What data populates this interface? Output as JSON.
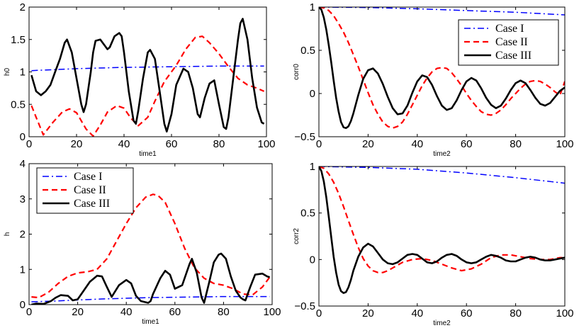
{
  "chart_data": [
    {
      "type": "line",
      "xlabel": "time1",
      "ylabel": "h0",
      "xlim": [
        0,
        100
      ],
      "ylim": [
        0,
        2
      ],
      "xticks": [
        0,
        20,
        40,
        60,
        80,
        100
      ],
      "yticks": [
        0,
        0.5,
        1,
        1.5,
        2
      ],
      "ytick_labels": [
        "0",
        "0.5",
        "1",
        "1.5",
        "2"
      ],
      "legend": null,
      "series": [
        {
          "name": "Case I",
          "color": "#0000ff",
          "style": "dashdot",
          "x": [
            1,
            20,
            40,
            60,
            80,
            99
          ],
          "y": [
            1.02,
            1.05,
            1.07,
            1.08,
            1.09,
            1.09
          ]
        },
        {
          "name": "Case II",
          "color": "#ff0000",
          "style": "dashed",
          "x": [
            1,
            3,
            6,
            10,
            14,
            17,
            20,
            24,
            27,
            30,
            33,
            37,
            40,
            43,
            46,
            50,
            53,
            57,
            62,
            66,
            70,
            73,
            76,
            80,
            84,
            88,
            92,
            96,
            99
          ],
          "y": [
            0.48,
            0.3,
            0.03,
            0.22,
            0.38,
            0.43,
            0.37,
            0.12,
            0.01,
            0.18,
            0.38,
            0.48,
            0.44,
            0.28,
            0.17,
            0.3,
            0.55,
            0.85,
            1.1,
            1.35,
            1.53,
            1.55,
            1.45,
            1.28,
            1.08,
            0.9,
            0.8,
            0.75,
            0.7
          ]
        },
        {
          "name": "Case III",
          "color": "#000000",
          "style": "solid",
          "x": [
            1,
            3,
            5,
            7,
            9,
            11,
            13,
            15,
            16,
            18,
            20,
            22,
            23,
            24,
            26,
            27,
            28,
            30,
            32,
            33,
            34,
            36,
            38,
            39,
            40,
            42,
            44,
            45,
            46,
            48,
            50,
            51,
            53,
            55,
            57,
            58,
            60,
            62,
            65,
            67,
            69,
            71,
            72,
            74,
            76,
            78,
            80,
            82,
            83,
            84,
            86,
            88,
            89,
            90,
            92,
            94,
            96,
            98,
            99
          ],
          "y": [
            0.95,
            0.7,
            0.64,
            0.7,
            0.8,
            1.0,
            1.2,
            1.45,
            1.5,
            1.3,
            0.9,
            0.5,
            0.38,
            0.5,
            1.0,
            1.3,
            1.48,
            1.5,
            1.4,
            1.35,
            1.38,
            1.55,
            1.6,
            1.55,
            1.3,
            0.7,
            0.25,
            0.2,
            0.4,
            0.9,
            1.3,
            1.34,
            1.2,
            0.7,
            0.2,
            0.08,
            0.35,
            0.8,
            1.05,
            1.0,
            0.75,
            0.35,
            0.3,
            0.6,
            0.82,
            0.87,
            0.5,
            0.15,
            0.12,
            0.3,
            0.9,
            1.5,
            1.75,
            1.82,
            1.5,
            0.9,
            0.45,
            0.22,
            0.2
          ]
        }
      ]
    },
    {
      "type": "line",
      "xlabel": "time2",
      "ylabel": "corr0",
      "xlim": [
        0,
        100
      ],
      "ylim": [
        -0.5,
        1
      ],
      "xticks": [
        0,
        20,
        40,
        60,
        80,
        100
      ],
      "yticks": [
        -0.5,
        0,
        0.5,
        1
      ],
      "ytick_labels": [
        "−0.5",
        "0",
        "0.5",
        "1"
      ],
      "legend": "top-right",
      "series": [
        {
          "name": "Case I",
          "color": "#0000ff",
          "style": "dashdot",
          "x": [
            0,
            20,
            40,
            60,
            80,
            100
          ],
          "y": [
            1.0,
            0.995,
            0.98,
            0.96,
            0.94,
            0.91
          ]
        },
        {
          "name": "Case II",
          "color": "#ff0000",
          "style": "dashed",
          "x": [
            0,
            2,
            4,
            6,
            8,
            10,
            12,
            14,
            16,
            18,
            20,
            22,
            24,
            26,
            28,
            30,
            32,
            34,
            36,
            38,
            40,
            42,
            44,
            46,
            48,
            50,
            52,
            54,
            56,
            58,
            60,
            62,
            64,
            66,
            68,
            70,
            72,
            74,
            76,
            78,
            80,
            82,
            84,
            86,
            88,
            90,
            92,
            94,
            96,
            98,
            100
          ],
          "y": [
            1.0,
            0.99,
            0.96,
            0.9,
            0.81,
            0.71,
            0.59,
            0.45,
            0.31,
            0.16,
            0.01,
            -0.13,
            -0.24,
            -0.33,
            -0.38,
            -0.4,
            -0.38,
            -0.33,
            -0.24,
            -0.13,
            -0.02,
            0.09,
            0.18,
            0.25,
            0.29,
            0.3,
            0.29,
            0.24,
            0.17,
            0.09,
            0.0,
            -0.08,
            -0.15,
            -0.21,
            -0.24,
            -0.25,
            -0.23,
            -0.19,
            -0.13,
            -0.06,
            0.0,
            0.06,
            0.11,
            0.14,
            0.15,
            0.14,
            0.11,
            0.07,
            0.02,
            -0.02,
            0.14
          ]
        },
        {
          "name": "Case III",
          "color": "#000000",
          "style": "solid",
          "x": [
            0,
            1,
            2,
            3,
            4,
            5,
            6,
            7,
            8,
            9,
            10,
            11,
            12,
            13,
            14,
            16,
            18,
            20,
            22,
            24,
            26,
            28,
            30,
            32,
            34,
            36,
            38,
            40,
            42,
            44,
            46,
            48,
            50,
            52,
            54,
            56,
            58,
            60,
            62,
            64,
            66,
            68,
            70,
            72,
            74,
            76,
            78,
            80,
            82,
            84,
            86,
            88,
            90,
            92,
            94,
            96,
            98,
            100
          ],
          "y": [
            1.0,
            0.97,
            0.88,
            0.74,
            0.56,
            0.36,
            0.15,
            -0.05,
            -0.21,
            -0.33,
            -0.39,
            -0.4,
            -0.38,
            -0.32,
            -0.23,
            -0.02,
            0.17,
            0.27,
            0.29,
            0.23,
            0.11,
            -0.04,
            -0.17,
            -0.24,
            -0.23,
            -0.14,
            0.01,
            0.14,
            0.21,
            0.19,
            0.1,
            -0.03,
            -0.14,
            -0.19,
            -0.17,
            -0.08,
            0.04,
            0.14,
            0.18,
            0.15,
            0.06,
            -0.05,
            -0.13,
            -0.17,
            -0.14,
            -0.06,
            0.04,
            0.12,
            0.15,
            0.12,
            0.04,
            -0.05,
            -0.12,
            -0.14,
            -0.11,
            -0.04,
            0.03,
            0.07
          ]
        }
      ]
    },
    {
      "type": "line",
      "xlabel": "time1",
      "ylabel": "h",
      "xlim": [
        0,
        100
      ],
      "ylim": [
        0,
        4
      ],
      "xticks": [
        0,
        20,
        40,
        60,
        80,
        100
      ],
      "yticks": [
        0,
        1,
        2,
        3,
        4
      ],
      "ytick_labels": [
        "0",
        "1",
        "2",
        "3",
        "4"
      ],
      "legend": "top-left",
      "series": [
        {
          "name": "Case I",
          "color": "#0000ff",
          "style": "dashdot",
          "x": [
            1,
            10,
            20,
            30,
            40,
            50,
            60,
            70,
            80,
            90,
            99
          ],
          "y": [
            0.08,
            0.1,
            0.13,
            0.16,
            0.18,
            0.2,
            0.21,
            0.22,
            0.23,
            0.23,
            0.23
          ]
        },
        {
          "name": "Case II",
          "color": "#ff0000",
          "style": "dashed",
          "x": [
            1,
            4,
            8,
            12,
            16,
            20,
            24,
            28,
            32,
            36,
            40,
            44,
            48,
            51,
            53,
            56,
            60,
            64,
            68,
            72,
            76,
            80,
            84,
            88,
            92,
            96,
            99
          ],
          "y": [
            0.22,
            0.2,
            0.35,
            0.6,
            0.8,
            0.9,
            0.93,
            1.0,
            1.3,
            1.8,
            2.3,
            2.75,
            3.05,
            3.13,
            3.1,
            2.9,
            2.3,
            1.6,
            1.05,
            0.75,
            0.6,
            0.55,
            0.45,
            0.3,
            0.28,
            0.5,
            0.78
          ]
        },
        {
          "name": "Case III",
          "color": "#000000",
          "style": "solid",
          "x": [
            1,
            3,
            6,
            9,
            11,
            13,
            16,
            18,
            20,
            22,
            25,
            28,
            30,
            32,
            34,
            37,
            40,
            42,
            44,
            46,
            49,
            50,
            51,
            54,
            56,
            58,
            60,
            63,
            66,
            67,
            69,
            71,
            72,
            74,
            76,
            78,
            79,
            81,
            83,
            85,
            87,
            88,
            89,
            91,
            93,
            96,
            98,
            99
          ],
          "y": [
            0.0,
            0.03,
            0.02,
            0.1,
            0.2,
            0.27,
            0.25,
            0.12,
            0.15,
            0.35,
            0.65,
            0.82,
            0.8,
            0.5,
            0.22,
            0.55,
            0.7,
            0.6,
            0.25,
            0.1,
            0.05,
            0.1,
            0.3,
            0.75,
            0.96,
            0.85,
            0.45,
            0.55,
            1.15,
            1.3,
            0.9,
            0.2,
            0.05,
            0.6,
            1.2,
            1.42,
            1.45,
            1.3,
            0.8,
            0.4,
            0.2,
            0.15,
            0.12,
            0.5,
            0.85,
            0.88,
            0.8,
            0.78
          ]
        }
      ]
    },
    {
      "type": "line",
      "xlabel": "time2",
      "ylabel": "corr2",
      "xlim": [
        0,
        100
      ],
      "ylim": [
        -0.5,
        1
      ],
      "xticks": [
        0,
        20,
        40,
        60,
        80,
        100
      ],
      "yticks": [
        -0.5,
        0,
        0.5,
        1
      ],
      "ytick_labels": [
        "−0.5",
        "0",
        "0.5",
        "1"
      ],
      "legend": null,
      "series": [
        {
          "name": "Case I",
          "color": "#0000ff",
          "style": "dashdot",
          "x": [
            0,
            20,
            40,
            60,
            80,
            100
          ],
          "y": [
            1.0,
            0.99,
            0.97,
            0.93,
            0.88,
            0.82
          ]
        },
        {
          "name": "Case II",
          "color": "#ff0000",
          "style": "dashed",
          "x": [
            0,
            2,
            4,
            6,
            8,
            10,
            12,
            14,
            16,
            18,
            20,
            22,
            24,
            26,
            28,
            30,
            34,
            38,
            42,
            46,
            50,
            54,
            58,
            62,
            66,
            70,
            74,
            78,
            82,
            86,
            90,
            94,
            98,
            100
          ],
          "y": [
            1.0,
            0.98,
            0.92,
            0.83,
            0.71,
            0.57,
            0.42,
            0.27,
            0.13,
            0.01,
            -0.07,
            -0.12,
            -0.14,
            -0.14,
            -0.12,
            -0.09,
            -0.03,
            0.0,
            0.01,
            -0.01,
            -0.05,
            -0.09,
            -0.12,
            -0.1,
            -0.05,
            0.02,
            0.05,
            0.05,
            0.03,
            0.01,
            0.0,
            0.0,
            0.02,
            0.02
          ]
        },
        {
          "name": "Case III",
          "color": "#000000",
          "style": "solid",
          "x": [
            0,
            1,
            2,
            3,
            4,
            5,
            6,
            7,
            8,
            9,
            10,
            11,
            12,
            13,
            14,
            16,
            18,
            20,
            22,
            24,
            26,
            28,
            30,
            32,
            34,
            36,
            38,
            40,
            42,
            44,
            46,
            48,
            50,
            52,
            54,
            56,
            58,
            60,
            62,
            64,
            66,
            68,
            70,
            72,
            74,
            76,
            78,
            80,
            82,
            84,
            86,
            88,
            90,
            92,
            94,
            96,
            98,
            100
          ],
          "y": [
            1.0,
            0.95,
            0.84,
            0.67,
            0.46,
            0.24,
            0.03,
            -0.14,
            -0.27,
            -0.34,
            -0.36,
            -0.35,
            -0.3,
            -0.22,
            -0.12,
            0.03,
            0.13,
            0.17,
            0.14,
            0.07,
            0.0,
            -0.04,
            -0.05,
            -0.03,
            0.01,
            0.05,
            0.06,
            0.05,
            0.01,
            -0.03,
            -0.04,
            -0.02,
            0.02,
            0.05,
            0.06,
            0.04,
            0.0,
            -0.03,
            -0.04,
            -0.03,
            0.0,
            0.03,
            0.05,
            0.04,
            0.02,
            -0.01,
            -0.02,
            -0.02,
            0.0,
            0.02,
            0.03,
            0.02,
            0.0,
            -0.01,
            -0.01,
            0.0,
            0.01,
            0.02
          ]
        }
      ]
    }
  ]
}
